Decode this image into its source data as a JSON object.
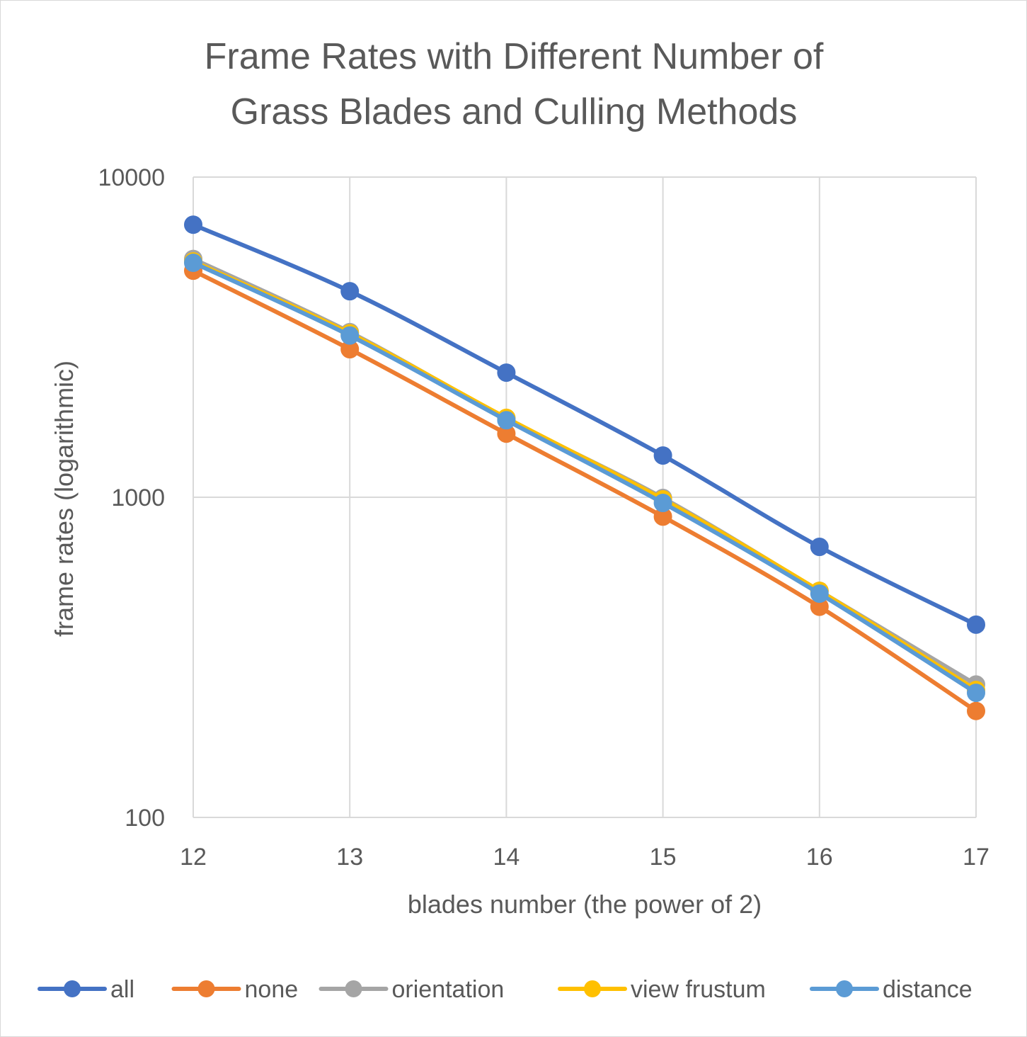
{
  "chart_data": {
    "type": "line",
    "title_lines": [
      "Frame Rates with Different Number of",
      "Grass Blades and Culling Methods"
    ],
    "xlabel": "blades number (the power of 2)",
    "ylabel": "frame rates (logarithmic)",
    "yscale": "log",
    "ylim": [
      100,
      10000
    ],
    "y_ticks": [
      10000,
      1000,
      100
    ],
    "y_tick_labels": [
      "10000",
      "1000",
      "100"
    ],
    "x": [
      12,
      13,
      14,
      15,
      16,
      17
    ],
    "x_tick_labels": [
      "12",
      "13",
      "14",
      "15",
      "16",
      "17"
    ],
    "grid": true,
    "legend_position": "bottom",
    "series": [
      {
        "name": "all",
        "color": "#4472C4",
        "values": [
          7100,
          4400,
          2450,
          1350,
          700,
          400
        ]
      },
      {
        "name": "none",
        "color": "#ED7D31",
        "values": [
          5100,
          2900,
          1580,
          870,
          455,
          215
        ]
      },
      {
        "name": "orientation",
        "color": "#A5A5A5",
        "values": [
          5550,
          3280,
          1760,
          995,
          510,
          260
        ]
      },
      {
        "name": "view frustum",
        "color": "#FFC000",
        "values": [
          5450,
          3250,
          1770,
          985,
          510,
          250
        ]
      },
      {
        "name": "distance",
        "color": "#5B9BD5",
        "values": [
          5400,
          3200,
          1740,
          960,
          500,
          245
        ]
      }
    ]
  }
}
